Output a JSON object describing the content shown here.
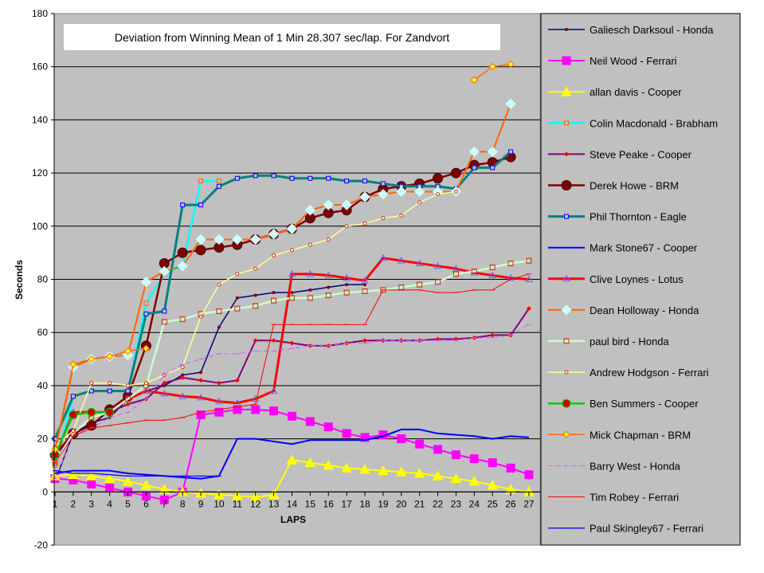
{
  "chart_data": {
    "type": "line",
    "title": "Deviation from Winning Mean of 1 Min 28.307 sec/lap. For Zandvort",
    "xlabel": "LAPS",
    "ylabel": "Seconds",
    "ylim": [
      -20,
      180
    ],
    "yticks": [
      -20,
      0,
      20,
      40,
      60,
      80,
      100,
      120,
      140,
      160,
      180
    ],
    "categories": [
      1,
      2,
      3,
      4,
      5,
      6,
      7,
      8,
      9,
      10,
      11,
      12,
      13,
      14,
      15,
      16,
      17,
      18,
      19,
      20,
      21,
      22,
      23,
      24,
      25,
      26,
      27
    ],
    "grid": "horizontal",
    "legend_position": "right",
    "plot_background": "#c0c0c0",
    "series": [
      {
        "name": "Galiesch Darksoul - Honda",
        "color": "#000080",
        "marker": "dot",
        "values": [
          4,
          22,
          26,
          28,
          35,
          38,
          40,
          44,
          45,
          62,
          73,
          74,
          75,
          75,
          76,
          77,
          78,
          78,
          null,
          null,
          null,
          null,
          null,
          null,
          null,
          null,
          null
        ]
      },
      {
        "name": "Neil Wood - Ferrari",
        "color": "#ff00ff",
        "marker": "square",
        "values": [
          5,
          4.5,
          3,
          1.5,
          0,
          -1.5,
          -3,
          0,
          29,
          30,
          31,
          31,
          30.5,
          28.5,
          26.5,
          24.5,
          22,
          20.5,
          21.5,
          20,
          18,
          16,
          14,
          12.5,
          11,
          9,
          6.5
        ]
      },
      {
        "name": "allan davis - Cooper",
        "color": "#ffff00",
        "marker": "triangle",
        "values": [
          6,
          6.5,
          6,
          5,
          4,
          2.5,
          1,
          0,
          -0.5,
          -1,
          -1.5,
          -2,
          -1,
          12,
          11,
          10,
          9,
          8.5,
          8,
          7.5,
          7,
          6,
          5,
          4,
          2.5,
          1,
          0
        ]
      },
      {
        "name": "Colin Macdonald - Brabham",
        "color": "#00ffff",
        "marker": "square-small",
        "values": [
          10,
          36,
          38,
          38,
          38,
          71,
          82,
          85,
          117,
          117,
          null,
          null,
          null,
          null,
          null,
          null,
          null,
          null,
          null,
          null,
          null,
          null,
          null,
          null,
          null,
          null,
          null
        ]
      },
      {
        "name": "Steve Peake - Cooper",
        "color": "#800080",
        "marker": "star",
        "values": [
          12,
          22,
          28,
          30,
          33,
          35,
          41,
          43,
          42,
          41,
          42,
          57,
          57,
          56,
          55,
          55,
          56,
          57,
          57,
          57,
          57,
          57.5,
          57.5,
          58,
          59,
          59,
          69
        ]
      },
      {
        "name": "Derek Howe - BRM",
        "color": "#800000",
        "marker": "big-circle",
        "values": [
          14,
          22,
          25,
          31,
          36,
          55,
          86,
          90,
          91,
          92,
          93,
          95,
          97,
          99,
          103,
          105,
          106,
          111,
          114,
          115,
          116,
          118,
          120,
          123,
          124,
          126,
          null
        ]
      },
      {
        "name": "Phil Thornton - Eagle",
        "color": "#008080",
        "marker": "square-small",
        "values": [
          20,
          36,
          38,
          38,
          38,
          67,
          68,
          108,
          108,
          115,
          118,
          119,
          119,
          118,
          118,
          118,
          117,
          117,
          116,
          115,
          115,
          115,
          114,
          122,
          122,
          128,
          null
        ]
      },
      {
        "name": "Mark Stone67 - Cooper",
        "color": "#0000ff",
        "marker": "none",
        "values": [
          7,
          8,
          8,
          8,
          7,
          6.5,
          6,
          5.5,
          5,
          6,
          20,
          20,
          19,
          18,
          19.5,
          19.5,
          19.5,
          19.5,
          21,
          23.5,
          23.5,
          22,
          21.5,
          21,
          20,
          21,
          20.5
        ]
      },
      {
        "name": "Clive Loynes - Lotus",
        "color": "#ff0000",
        "marker": "triangle-open",
        "values": [
          13,
          30,
          30,
          30,
          35,
          38,
          37,
          36,
          35.5,
          34,
          33.5,
          35,
          38,
          82,
          82,
          81.5,
          80.5,
          79.5,
          88,
          87,
          86,
          85,
          84,
          82.5,
          81.5,
          80.5,
          80
        ]
      },
      {
        "name": "Dean Holloway - Honda",
        "color": "#ff6600",
        "marker": "diamond-light",
        "values": [
          15,
          47,
          50,
          51,
          51.5,
          79,
          83,
          85,
          95,
          95,
          95,
          95,
          97,
          99,
          106,
          108,
          108,
          111,
          112,
          113,
          113,
          113,
          113,
          128,
          128,
          146,
          null
        ]
      },
      {
        "name": "paul bird - Honda",
        "color": "#ccffcc",
        "marker": "square-open-red",
        "values": [
          11,
          22,
          28,
          30,
          35,
          40,
          64,
          65,
          67,
          68,
          69,
          70,
          72,
          73,
          73,
          74,
          75,
          75.5,
          76,
          77,
          78,
          79,
          82,
          83,
          84.5,
          86,
          87
        ]
      },
      {
        "name": "Andrew Hodgson - Ferrari",
        "color": "#ffff99",
        "marker": "dot-red",
        "values": [
          17,
          23,
          41,
          41,
          40,
          41,
          44,
          47,
          66,
          78,
          82,
          84,
          89,
          91,
          93,
          95,
          100,
          101,
          103,
          104,
          109,
          112,
          113,
          null,
          null,
          null,
          null
        ]
      },
      {
        "name": "Ben Summers - Cooper",
        "color": "#00cc00",
        "marker": "circle-red",
        "values": [
          14,
          29,
          30,
          30,
          null,
          null,
          null,
          null,
          null,
          null,
          null,
          null,
          null,
          null,
          null,
          null,
          null,
          null,
          null,
          null,
          null,
          null,
          null,
          null,
          null,
          null,
          null
        ]
      },
      {
        "name": "Mick Chapman - BRM",
        "color": "#ff6600",
        "marker": "diamond-orange",
        "values": [
          16,
          48,
          50,
          51,
          53,
          54,
          null,
          null,
          null,
          null,
          null,
          null,
          null,
          null,
          null,
          null,
          null,
          null,
          null,
          null,
          null,
          null,
          null,
          155,
          160,
          161,
          null
        ]
      },
      {
        "name": "Barry West - Honda",
        "color": "#cc66ff",
        "marker": "dash",
        "values": [
          5,
          21,
          24,
          28,
          30,
          35,
          44,
          48,
          50,
          52,
          52,
          53,
          53,
          54,
          55,
          55,
          56,
          56,
          57,
          57,
          57,
          57,
          57,
          58,
          58,
          59,
          63
        ]
      },
      {
        "name": "Tim Robey - Ferrari",
        "color": "#ff0000",
        "marker": "dash",
        "values": [
          11,
          21,
          24,
          25,
          26,
          27,
          27,
          28,
          30,
          31,
          32,
          33,
          63,
          63,
          63,
          63,
          63,
          63,
          76,
          76,
          76,
          75,
          75,
          76,
          76,
          80,
          82
        ]
      },
      {
        "name": "Paul Skingley67 - Ferrari",
        "color": "#0000ff",
        "marker": "dash",
        "values": [
          8,
          7,
          7,
          6.5,
          6,
          6,
          6,
          6,
          6,
          6,
          null,
          null,
          null,
          null,
          null,
          null,
          null,
          null,
          null,
          null,
          null,
          null,
          null,
          null,
          null,
          null,
          null
        ]
      }
    ]
  }
}
